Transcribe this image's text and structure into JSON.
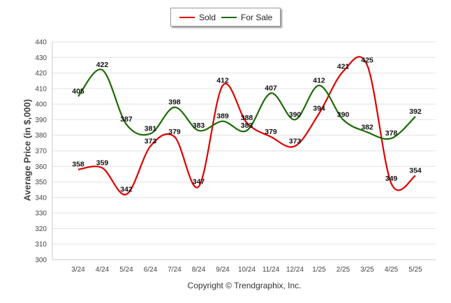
{
  "chart_data": {
    "type": "line",
    "categories": [
      "3/24",
      "4/24",
      "5/24",
      "6/24",
      "7/24",
      "8/24",
      "9/24",
      "10/24",
      "11/24",
      "12/24",
      "1/25",
      "2/25",
      "3/25",
      "4/25",
      "5/25"
    ],
    "series": [
      {
        "name": "Sold",
        "color": "#e00000",
        "values": [
          358,
          359,
          342,
          373,
          379,
          347,
          412,
          388,
          379,
          373,
          394,
          421,
          425,
          349,
          354
        ]
      },
      {
        "name": "For Sale",
        "color": "#1a6b00",
        "values": [
          405,
          422,
          387,
          381,
          398,
          383,
          389,
          383,
          407,
          390,
          412,
          390,
          382,
          378,
          392
        ]
      }
    ],
    "title": "",
    "xlabel": "",
    "ylabel": "Average Price (in $,000)",
    "ylim": [
      300,
      440
    ],
    "yticks": [
      300,
      310,
      320,
      330,
      340,
      350,
      360,
      370,
      380,
      390,
      400,
      410,
      420,
      430,
      440
    ],
    "grid": true,
    "legend": "top-center"
  },
  "footer": {
    "credit": "Copyright © Trendgraphix, Inc."
  }
}
